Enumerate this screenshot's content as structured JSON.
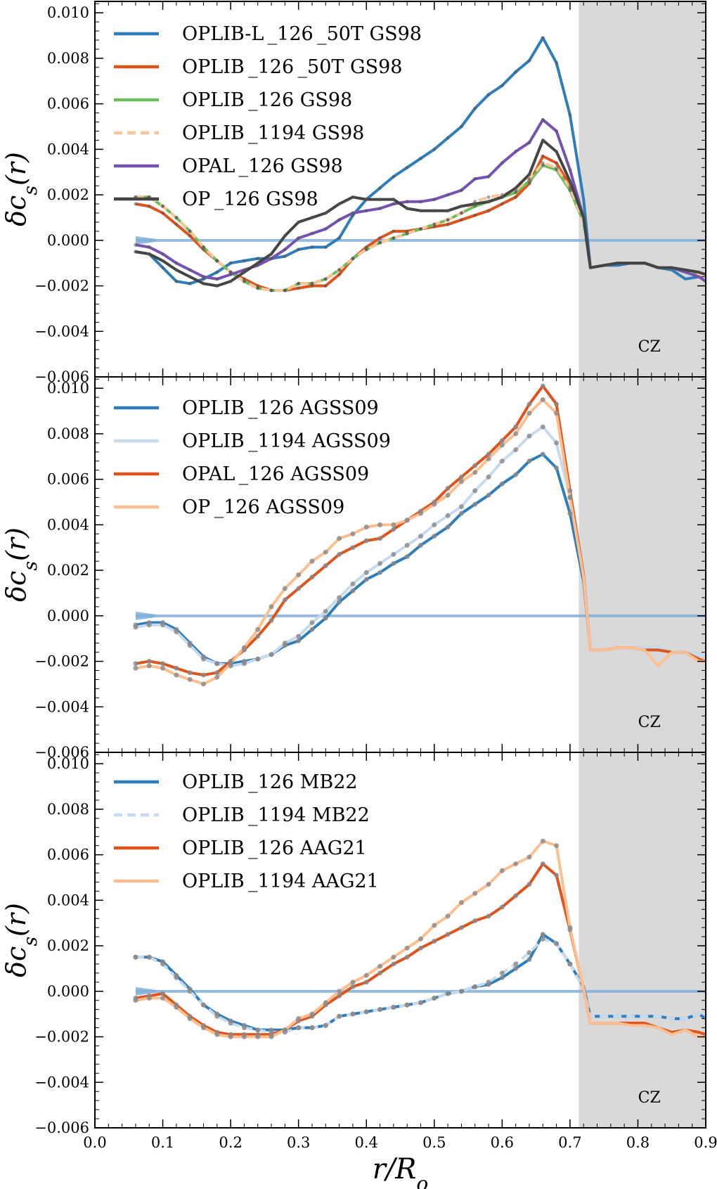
{
  "chart_data": [
    {
      "type": "line",
      "ylabel": "δc_s(r)",
      "xlim": [
        0.0,
        0.9
      ],
      "ylim": [
        -0.006,
        0.0105
      ],
      "yticks": [
        "0.010",
        "0.008",
        "0.006",
        "0.004",
        "0.002",
        "0.000",
        "−0.002",
        "−0.004",
        "−0.006"
      ],
      "shaded_region": {
        "from": 0.713,
        "to": 0.9,
        "label": "CZ",
        "color": "#d9d9d9"
      },
      "legend": "top-left",
      "x": [
        0.06,
        0.08,
        0.1,
        0.12,
        0.14,
        0.16,
        0.18,
        0.2,
        0.22,
        0.24,
        0.26,
        0.28,
        0.3,
        0.32,
        0.34,
        0.36,
        0.38,
        0.4,
        0.42,
        0.44,
        0.46,
        0.48,
        0.5,
        0.52,
        0.54,
        0.56,
        0.58,
        0.6,
        0.62,
        0.64,
        0.66,
        0.68,
        0.7,
        0.72,
        0.73,
        0.75,
        0.77,
        0.79,
        0.81,
        0.83,
        0.85,
        0.87,
        0.89,
        0.9
      ],
      "series": [
        {
          "name": "OPLIB-L_126_50T GS98",
          "color": "#2e7ebc",
          "width": 4,
          "dashed": false,
          "markers": false,
          "values": [
            -0.0005,
            -0.0006,
            -0.0012,
            -0.0018,
            -0.0019,
            -0.0017,
            -0.0014,
            -0.001,
            -0.0009,
            -0.0008,
            -0.0008,
            -0.0007,
            -0.0004,
            -0.0003,
            -0.0003,
            0.0001,
            0.0011,
            0.0018,
            0.0023,
            0.0028,
            0.0032,
            0.0036,
            0.004,
            0.0045,
            0.005,
            0.0058,
            0.0064,
            0.0068,
            0.0074,
            0.0079,
            0.0089,
            0.0078,
            0.0055,
            0.0018,
            -0.0012,
            -0.0011,
            -0.0011,
            -0.001,
            -0.001,
            -0.0012,
            -0.0013,
            -0.0017,
            -0.0016,
            -0.0018
          ]
        },
        {
          "name": "OPLIB_126_50T GS98",
          "color": "#e0531a",
          "width": 4,
          "dashed": false,
          "markers": false,
          "values": [
            0.0016,
            0.0015,
            0.0012,
            0.0007,
            0.0002,
            -0.0004,
            -0.0009,
            -0.0014,
            -0.0017,
            -0.002,
            -0.0022,
            -0.0022,
            -0.0021,
            -0.002,
            -0.002,
            -0.0015,
            -0.0008,
            -0.0003,
            0.0001,
            0.0004,
            0.0004,
            0.0005,
            0.0006,
            0.0007,
            0.0009,
            0.0011,
            0.0013,
            0.0016,
            0.0019,
            0.0025,
            0.0037,
            0.0034,
            0.0024,
            0.0009,
            -0.0012,
            -0.0011,
            -0.001,
            -0.001,
            -0.001,
            -0.0012,
            -0.0012,
            -0.0014,
            -0.0015,
            -0.0015
          ]
        },
        {
          "name": "OPLIB_126 GS98",
          "color": "#6abf5a",
          "width": 4,
          "dashed": false,
          "markers": false,
          "values": [
            0.0019,
            0.0019,
            0.0015,
            0.001,
            0.0004,
            -0.0003,
            -0.0009,
            -0.0014,
            -0.0018,
            -0.0021,
            -0.0022,
            -0.0022,
            -0.0019,
            -0.0019,
            -0.0017,
            -0.0013,
            -0.0008,
            -0.0004,
            -0.0001,
            0.0001,
            0.0003,
            0.0005,
            0.0007,
            0.0009,
            0.0012,
            0.0015,
            0.0017,
            0.0019,
            0.0021,
            0.0026,
            0.0033,
            0.0031,
            0.0022,
            0.0008,
            -0.0012,
            -0.0011,
            -0.001,
            -0.001,
            -0.001,
            -0.0012,
            -0.0012,
            -0.0014,
            -0.0015,
            -0.0015
          ]
        },
        {
          "name": "OPLIB_1194 GS98",
          "color": "#f9c69a",
          "width": 4,
          "dashed": true,
          "markers": false,
          "values": [
            0.0019,
            0.0019,
            0.0015,
            0.001,
            0.0004,
            -0.0003,
            -0.0009,
            -0.0014,
            -0.0018,
            -0.0021,
            -0.0022,
            -0.0022,
            -0.0019,
            -0.0019,
            -0.0017,
            -0.0013,
            -0.0008,
            -0.0004,
            -0.0001,
            0.0001,
            0.0003,
            0.0005,
            0.0007,
            0.0009,
            0.0012,
            0.0017,
            0.0019,
            0.002,
            0.0022,
            0.0027,
            0.0034,
            0.0032,
            0.0023,
            0.0008,
            -0.0012,
            -0.0011,
            -0.001,
            -0.001,
            -0.001,
            -0.0012,
            -0.0012,
            -0.0014,
            -0.0015,
            -0.0015
          ]
        },
        {
          "name": "OPAL_126 GS98",
          "color": "#7552b3",
          "width": 4,
          "dashed": false,
          "markers": false,
          "values": [
            -0.0002,
            -0.0003,
            -0.0006,
            -0.001,
            -0.0013,
            -0.0016,
            -0.0017,
            -0.0015,
            -0.0013,
            -0.0011,
            -0.0008,
            -0.0004,
            0.0001,
            0.0003,
            0.0005,
            0.0009,
            0.0012,
            0.0013,
            0.0014,
            0.0016,
            0.0017,
            0.0017,
            0.0018,
            0.002,
            0.0022,
            0.0027,
            0.0028,
            0.0034,
            0.0039,
            0.0043,
            0.0053,
            0.0048,
            0.0031,
            0.001,
            -0.0012,
            -0.0011,
            -0.001,
            -0.001,
            -0.001,
            -0.0012,
            -0.0012,
            -0.0014,
            -0.0016,
            -0.0018
          ]
        },
        {
          "name": "OP_126 GS98",
          "color": "#444444",
          "width": 4,
          "dashed": false,
          "markers": false,
          "values": [
            -0.0005,
            -0.0006,
            -0.0009,
            -0.0013,
            -0.0016,
            -0.0019,
            -0.002,
            -0.0018,
            -0.0014,
            -0.001,
            -0.0006,
            0.0002,
            0.0008,
            0.001,
            0.0012,
            0.0016,
            0.0019,
            0.0018,
            0.0018,
            0.0018,
            0.0014,
            0.0013,
            0.0013,
            0.0013,
            0.0015,
            0.0016,
            0.0017,
            0.0019,
            0.0023,
            0.0029,
            0.0044,
            0.0039,
            0.0026,
            0.001,
            -0.0012,
            -0.0011,
            -0.001,
            -0.001,
            -0.001,
            -0.0012,
            -0.0012,
            -0.0013,
            -0.0014,
            -0.0015
          ]
        }
      ]
    },
    {
      "type": "line",
      "ylabel": "δc_s(r)",
      "xlim": [
        0.0,
        0.9
      ],
      "ylim": [
        -0.006,
        0.0105
      ],
      "yticks": [
        "0.010",
        "0.008",
        "0.006",
        "0.004",
        "0.002",
        "0.000",
        "−0.002",
        "−0.004",
        "−0.006"
      ],
      "shaded_region": {
        "from": 0.713,
        "to": 0.9,
        "label": "CZ",
        "color": "#d9d9d9"
      },
      "legend": "top-left",
      "x": [
        0.06,
        0.08,
        0.1,
        0.12,
        0.14,
        0.16,
        0.18,
        0.2,
        0.22,
        0.24,
        0.26,
        0.28,
        0.3,
        0.32,
        0.34,
        0.36,
        0.38,
        0.4,
        0.42,
        0.44,
        0.46,
        0.48,
        0.5,
        0.52,
        0.54,
        0.56,
        0.58,
        0.6,
        0.62,
        0.64,
        0.66,
        0.68,
        0.7,
        0.72,
        0.73,
        0.75,
        0.77,
        0.79,
        0.81,
        0.83,
        0.85,
        0.87,
        0.89,
        0.9
      ],
      "series": [
        {
          "name": "OPLIB_126 AGSS09",
          "color": "#2e7ebc",
          "width": 4,
          "dashed": false,
          "markers": true,
          "values": [
            -0.0004,
            -0.0003,
            -0.0003,
            -0.0006,
            -0.0012,
            -0.0018,
            -0.0021,
            -0.0021,
            -0.002,
            -0.0019,
            -0.0017,
            -0.0013,
            -0.0011,
            -0.0006,
            -0.0001,
            0.0006,
            0.0011,
            0.0016,
            0.0019,
            0.0023,
            0.0026,
            0.0031,
            0.0035,
            0.0039,
            0.0045,
            0.0049,
            0.0053,
            0.0058,
            0.0062,
            0.0068,
            0.0071,
            0.0065,
            0.0045,
            0.0015,
            -0.0015,
            -0.0015,
            -0.0014,
            -0.0014,
            -0.0014,
            -0.0014,
            -0.0016,
            -0.0016,
            -0.0017,
            -0.0018
          ]
        },
        {
          "name": "OPLIB_1194 AGSS09",
          "color": "#c6dbef",
          "width": 4,
          "dashed": false,
          "markers": true,
          "values": [
            -0.0005,
            -0.0004,
            -0.0004,
            -0.0007,
            -0.0013,
            -0.0019,
            -0.0021,
            -0.0022,
            -0.0021,
            -0.0019,
            -0.0017,
            -0.0012,
            -0.0009,
            -0.0003,
            0.0002,
            0.0008,
            0.0014,
            0.0019,
            0.0023,
            0.0027,
            0.0031,
            0.0035,
            0.004,
            0.0044,
            0.0048,
            0.0055,
            0.0061,
            0.0068,
            0.0073,
            0.0079,
            0.0083,
            0.0076,
            0.0052,
            0.0018,
            -0.0015,
            -0.0015,
            -0.0014,
            -0.0014,
            -0.0014,
            -0.0014,
            -0.0016,
            -0.0016,
            -0.0017,
            -0.0018
          ]
        },
        {
          "name": "OPAL_126 AGSS09",
          "color": "#e0531a",
          "width": 4,
          "dashed": false,
          "markers": true,
          "values": [
            -0.0021,
            -0.002,
            -0.0021,
            -0.0023,
            -0.0025,
            -0.0026,
            -0.0025,
            -0.002,
            -0.0015,
            -0.0009,
            -0.0002,
            0.0007,
            0.0012,
            0.0017,
            0.0022,
            0.0027,
            0.003,
            0.0033,
            0.0034,
            0.0038,
            0.0042,
            0.0046,
            0.005,
            0.0056,
            0.0061,
            0.0066,
            0.0071,
            0.0077,
            0.0083,
            0.0093,
            0.0101,
            0.0093,
            0.0055,
            0.0018,
            -0.0015,
            -0.0015,
            -0.0014,
            -0.0014,
            -0.0015,
            -0.0015,
            -0.0016,
            -0.0016,
            -0.0019,
            -0.002
          ]
        },
        {
          "name": "OP_126 AGSS09",
          "color": "#fdbf8f",
          "width": 4,
          "dashed": false,
          "markers": true,
          "values": [
            -0.0023,
            -0.0022,
            -0.0023,
            -0.0026,
            -0.0028,
            -0.003,
            -0.0027,
            -0.0021,
            -0.0014,
            -0.0006,
            0.0004,
            0.0012,
            0.0018,
            0.0024,
            0.0028,
            0.0034,
            0.0036,
            0.0039,
            0.004,
            0.004,
            0.0042,
            0.0045,
            0.0049,
            0.0053,
            0.0059,
            0.0063,
            0.0069,
            0.0075,
            0.008,
            0.0089,
            0.0095,
            0.0089,
            0.0052,
            0.0017,
            -0.0015,
            -0.0015,
            -0.0014,
            -0.0014,
            -0.0015,
            -0.0022,
            -0.0016,
            -0.0016,
            -0.002,
            -0.002
          ]
        }
      ]
    },
    {
      "type": "line",
      "ylabel": "δc_s(r)",
      "xlabel": "r/R_o",
      "xlim": [
        0.0,
        0.9
      ],
      "ylim": [
        -0.006,
        0.0105
      ],
      "xticks": [
        "0.0",
        "0.1",
        "0.2",
        "0.3",
        "0.4",
        "0.5",
        "0.6",
        "0.7",
        "0.8",
        "0.9"
      ],
      "yticks": [
        "0.010",
        "0.008",
        "0.006",
        "0.004",
        "0.002",
        "0.000",
        "−0.002",
        "−0.004",
        "−0.006"
      ],
      "shaded_region": {
        "from": 0.713,
        "to": 0.9,
        "label": "CZ",
        "color": "#d9d9d9"
      },
      "legend": "top-left",
      "x": [
        0.06,
        0.08,
        0.1,
        0.12,
        0.14,
        0.16,
        0.18,
        0.2,
        0.22,
        0.24,
        0.26,
        0.28,
        0.3,
        0.32,
        0.34,
        0.36,
        0.38,
        0.4,
        0.42,
        0.44,
        0.46,
        0.48,
        0.5,
        0.52,
        0.54,
        0.56,
        0.58,
        0.6,
        0.62,
        0.64,
        0.66,
        0.68,
        0.7,
        0.72,
        0.73,
        0.75,
        0.77,
        0.79,
        0.81,
        0.83,
        0.85,
        0.87,
        0.89,
        0.9
      ],
      "series": [
        {
          "name": "OPLIB_126 MB22",
          "color": "#2e7ebc",
          "width": 4,
          "dashed": false,
          "markers": true,
          "values": [
            0.0015,
            0.0015,
            0.0013,
            0.0007,
            0.0001,
            -0.0006,
            -0.001,
            -0.0013,
            -0.0015,
            -0.0017,
            -0.0017,
            -0.0017,
            -0.0016,
            -0.0016,
            -0.0015,
            -0.0011,
            -0.001,
            -0.0009,
            -0.0008,
            -0.0007,
            -0.0006,
            -0.0005,
            -0.0003,
            -0.0001,
            0.0,
            0.0002,
            0.0003,
            0.0006,
            0.001,
            0.0014,
            0.0025,
            0.0021,
            0.0012,
            0.0002,
            -0.0011,
            -0.0011,
            -0.0011,
            -0.0011,
            -0.0011,
            -0.0011,
            -0.0012,
            -0.0012,
            -0.001,
            -0.0012
          ]
        },
        {
          "name": "OPLIB_1194 MB22",
          "color": "#c6dbef",
          "width": 4,
          "dashed": true,
          "markers": true,
          "values": [
            0.0015,
            0.0015,
            0.0012,
            0.0006,
            0.0,
            -0.0006,
            -0.0011,
            -0.0014,
            -0.0016,
            -0.0017,
            -0.0018,
            -0.0018,
            -0.0016,
            -0.0016,
            -0.0015,
            -0.0011,
            -0.001,
            -0.0009,
            -0.0008,
            -0.0007,
            -0.0006,
            -0.0005,
            -0.0003,
            -0.0001,
            0.0,
            0.0002,
            0.0004,
            0.0008,
            0.0012,
            0.0017,
            0.0023,
            0.0021,
            0.0012,
            0.0001,
            -0.0011,
            -0.0011,
            -0.0011,
            -0.0011,
            -0.0011,
            -0.0011,
            -0.0012,
            -0.0012,
            -0.001,
            -0.0012
          ]
        },
        {
          "name": "OPLIB_126 AAG21",
          "color": "#e0531a",
          "width": 4,
          "dashed": false,
          "markers": true,
          "values": [
            -0.0003,
            -0.0002,
            -0.0001,
            -0.0006,
            -0.0011,
            -0.0015,
            -0.0018,
            -0.0019,
            -0.0019,
            -0.0019,
            -0.0019,
            -0.0017,
            -0.0013,
            -0.0011,
            -0.0006,
            -0.0002,
            0.0002,
            0.0004,
            0.0008,
            0.0012,
            0.0015,
            0.0019,
            0.0022,
            0.0025,
            0.0028,
            0.0031,
            0.0033,
            0.0037,
            0.0042,
            0.0047,
            0.0056,
            0.0051,
            0.0027,
            0.0001,
            -0.0014,
            -0.0014,
            -0.0014,
            -0.0014,
            -0.0014,
            -0.0016,
            -0.0018,
            -0.0017,
            -0.0018,
            -0.0019
          ]
        },
        {
          "name": "OPLIB_1194 AAG21",
          "color": "#fdbf8f",
          "width": 4,
          "dashed": false,
          "markers": true,
          "values": [
            -0.0004,
            -0.0003,
            -0.0003,
            -0.0007,
            -0.0012,
            -0.0016,
            -0.0019,
            -0.002,
            -0.002,
            -0.002,
            -0.002,
            -0.0017,
            -0.0012,
            -0.001,
            -0.0005,
            0.0,
            0.0004,
            0.0007,
            0.0011,
            0.0015,
            0.0019,
            0.0023,
            0.0029,
            0.0033,
            0.0039,
            0.0043,
            0.0047,
            0.0053,
            0.0056,
            0.0059,
            0.0066,
            0.0064,
            0.0028,
            0.0001,
            -0.0014,
            -0.0014,
            -0.0014,
            -0.0015,
            -0.0015,
            -0.0016,
            -0.0019,
            -0.0017,
            -0.002,
            -0.002
          ]
        }
      ]
    }
  ]
}
